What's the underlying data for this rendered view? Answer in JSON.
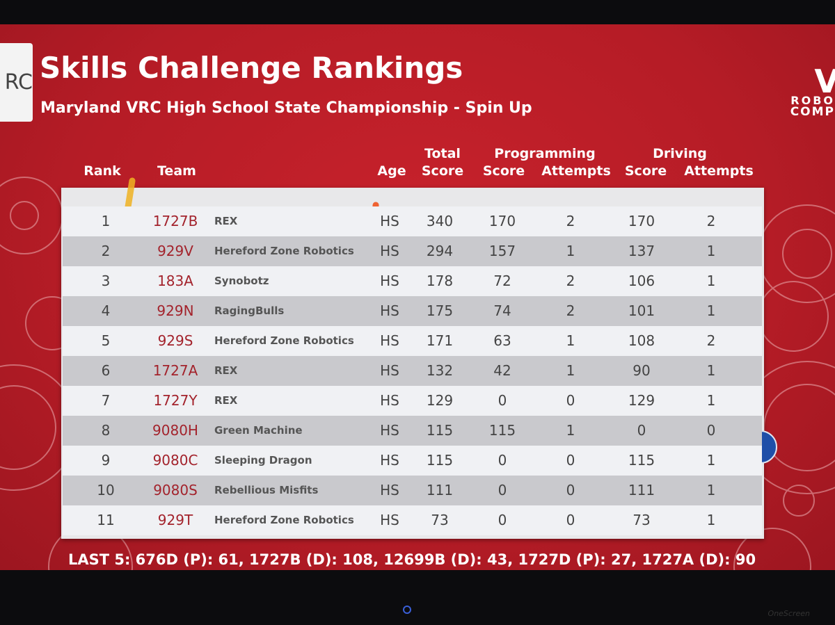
{
  "header": {
    "logo_left": "RC",
    "title": "Skills Challenge Rankings",
    "subtitle": "Maryland VRC High School State Championship - Spin Up",
    "logo_right": [
      "V",
      "ROBO",
      "COMP"
    ]
  },
  "table": {
    "group_headers": [
      "Total",
      "Programming",
      "Driving"
    ],
    "columns": [
      "Rank",
      "Team",
      "Age",
      "Score",
      "Score",
      "Attempts",
      "Score",
      "Attempts"
    ],
    "rows": [
      [
        1,
        "1727B",
        "REX",
        "HS",
        340,
        170,
        2,
        170,
        2
      ],
      [
        2,
        "929V",
        "Hereford Zone Robotics",
        "HS",
        294,
        157,
        1,
        137,
        1
      ],
      [
        3,
        "183A",
        "Synobotz",
        "HS",
        178,
        72,
        2,
        106,
        1
      ],
      [
        4,
        "929N",
        "RagingBulls",
        "HS",
        175,
        74,
        2,
        101,
        1
      ],
      [
        5,
        "929S",
        "Hereford Zone Robotics",
        "HS",
        171,
        63,
        1,
        108,
        2
      ],
      [
        6,
        "1727A",
        "REX",
        "HS",
        132,
        42,
        1,
        90,
        1
      ],
      [
        7,
        "1727Y",
        "REX",
        "HS",
        129,
        0,
        0,
        129,
        1
      ],
      [
        8,
        "9080H",
        "Green Machine",
        "HS",
        115,
        115,
        1,
        0,
        0
      ],
      [
        9,
        "9080C",
        "Sleeping Dragon",
        "HS",
        115,
        0,
        0,
        115,
        1
      ],
      [
        10,
        "9080S",
        "Rebellious Misfits",
        "HS",
        111,
        0,
        0,
        111,
        1
      ],
      [
        11,
        "929T",
        "Hereford Zone Robotics",
        "HS",
        73,
        0,
        0,
        73,
        1
      ]
    ]
  },
  "footer": "LAST 5: 676D (P): 61, 1727B (D): 108, 12699B (D): 43, 1727D (P): 27, 1727A (D): 90",
  "bezel_brand": "OneScreen"
}
